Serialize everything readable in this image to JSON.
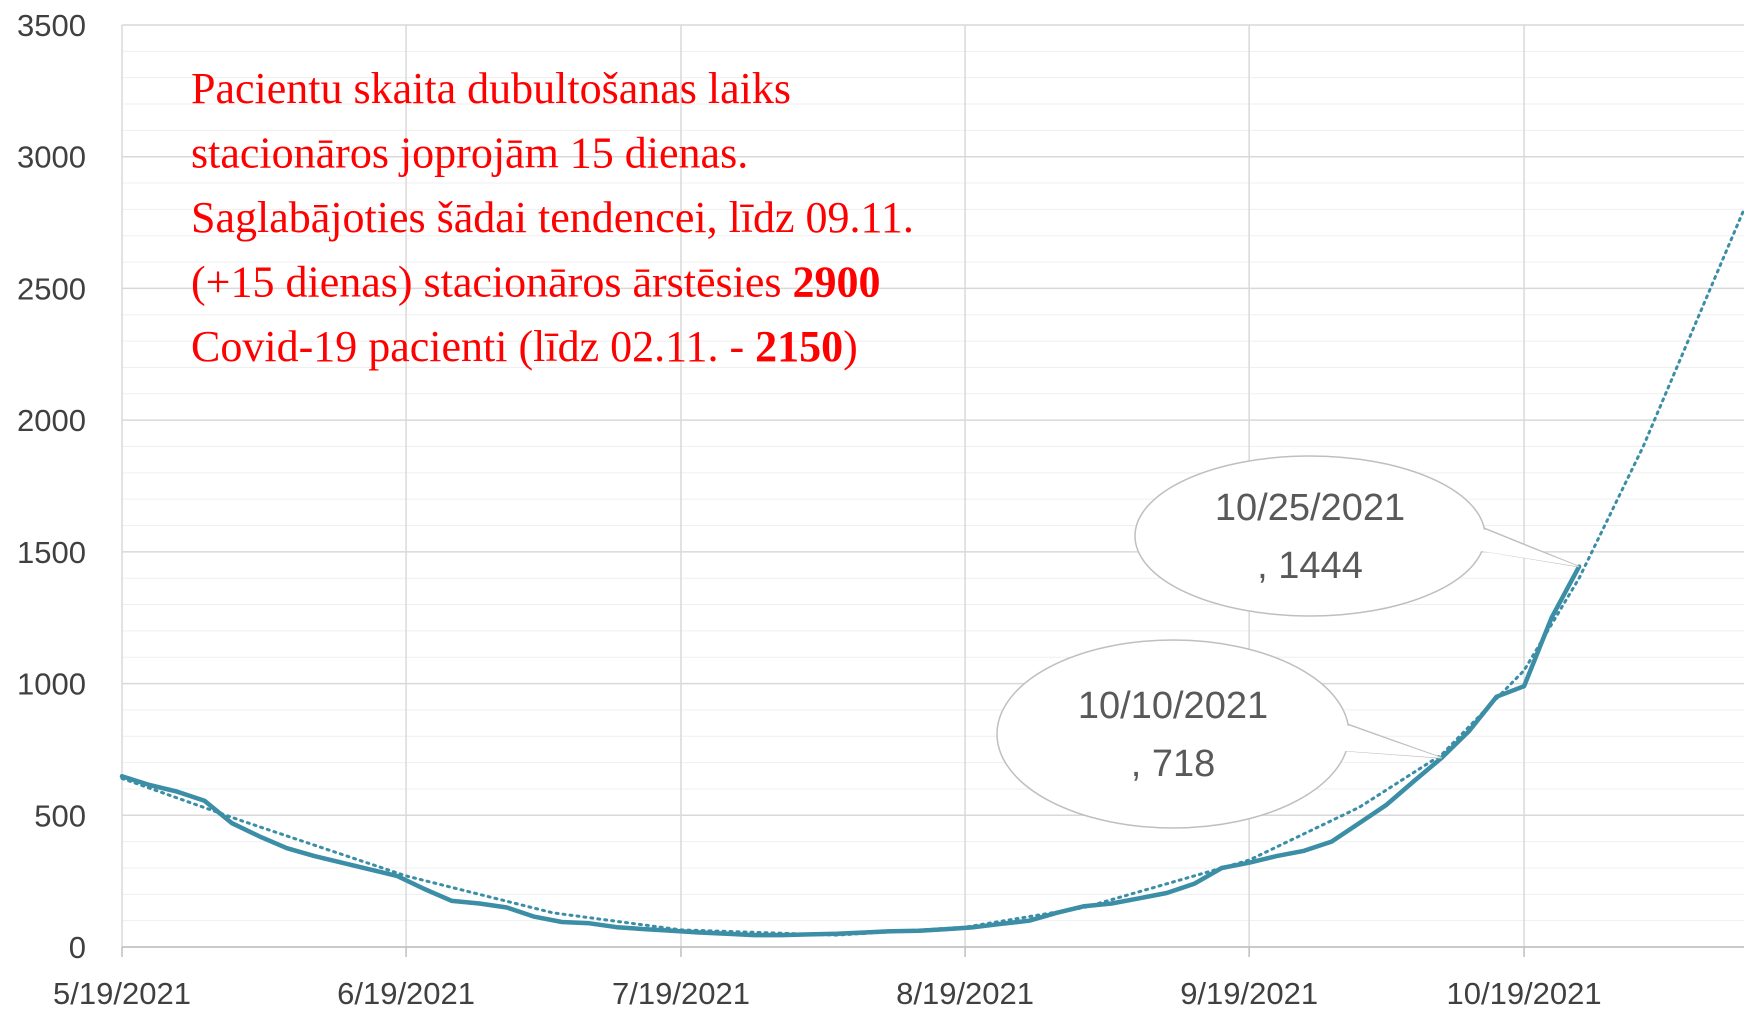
{
  "chart_data": {
    "type": "line",
    "xlim": [
      "2021-05-19",
      "2021-11-12"
    ],
    "xticks": [
      {
        "value": "2021-05-19",
        "label": "5/19/2021"
      },
      {
        "value": "2021-06-19",
        "label": "6/19/2021"
      },
      {
        "value": "2021-07-19",
        "label": "7/19/2021"
      },
      {
        "value": "2021-08-19",
        "label": "8/19/2021"
      },
      {
        "value": "2021-09-19",
        "label": "9/19/2021"
      },
      {
        "value": "2021-10-19",
        "label": "10/19/2021"
      }
    ],
    "ylim": [
      0,
      3500
    ],
    "yticks": [
      0,
      500,
      1000,
      1500,
      2000,
      2500,
      3000,
      3500
    ],
    "yminor": 100,
    "grid": true,
    "series": [
      {
        "color": "#3b8ea5",
        "style": "solid",
        "x": [
          "2021-05-19",
          "2021-05-22",
          "2021-05-25",
          "2021-05-28",
          "2021-05-31",
          "2021-06-03",
          "2021-06-06",
          "2021-06-09",
          "2021-06-12",
          "2021-06-15",
          "2021-06-18",
          "2021-06-21",
          "2021-06-24",
          "2021-06-27",
          "2021-06-30",
          "2021-07-03",
          "2021-07-06",
          "2021-07-09",
          "2021-07-12",
          "2021-07-15",
          "2021-07-18",
          "2021-07-21",
          "2021-07-24",
          "2021-07-27",
          "2021-07-30",
          "2021-08-02",
          "2021-08-05",
          "2021-08-08",
          "2021-08-11",
          "2021-08-14",
          "2021-08-17",
          "2021-08-20",
          "2021-08-23",
          "2021-08-26",
          "2021-08-29",
          "2021-09-01",
          "2021-09-04",
          "2021-09-07",
          "2021-09-10",
          "2021-09-13",
          "2021-09-16",
          "2021-09-19",
          "2021-09-22",
          "2021-09-25",
          "2021-09-28",
          "2021-10-01",
          "2021-10-04",
          "2021-10-07",
          "2021-10-10",
          "2021-10-13",
          "2021-10-16",
          "2021-10-19",
          "2021-10-22",
          "2021-10-25"
        ],
        "values": [
          648,
          615,
          590,
          555,
          470,
          420,
          375,
          345,
          320,
          295,
          270,
          220,
          175,
          165,
          150,
          115,
          95,
          90,
          75,
          68,
          62,
          55,
          50,
          45,
          45,
          48,
          50,
          55,
          60,
          62,
          68,
          75,
          88,
          100,
          130,
          155,
          165,
          185,
          205,
          240,
          300,
          320,
          345,
          365,
          400,
          470,
          540,
          630,
          718,
          820,
          950,
          990,
          1250,
          1444
        ]
      },
      {
        "color": "#3b8ea5",
        "style": "dotted",
        "x": [
          "2021-05-19",
          "2021-06-01",
          "2021-06-19",
          "2021-07-05",
          "2021-07-19",
          "2021-08-05",
          "2021-08-19",
          "2021-09-01",
          "2021-09-19",
          "2021-10-01",
          "2021-10-10",
          "2021-10-19",
          "2021-10-25",
          "2021-11-01",
          "2021-11-12"
        ],
        "values": [
          640,
          480,
          270,
          130,
          65,
          45,
          75,
          150,
          330,
          530,
          730,
          1050,
          1400,
          1900,
          2800
        ]
      }
    ],
    "callouts": [
      {
        "series": 0,
        "point": 53,
        "lines": [
          "10/25/2021",
          ", 1444"
        ]
      },
      {
        "series": 0,
        "point": 48,
        "lines": [
          "10/10/2021",
          ", 718"
        ]
      }
    ],
    "annotation": {
      "color": "#ff0000",
      "lines": [
        [
          {
            "text": "Pacientu skaita dubultošanas laiks"
          }
        ],
        [
          {
            "text": "stacionāros joprojām 15 dienas."
          }
        ],
        [
          {
            "text": "Saglabājoties šādai tendencei, līdz 09.11."
          }
        ],
        [
          {
            "text": "(+15 dienas) stacionāros ārstēsies "
          },
          {
            "text": "2900",
            "bold": true
          }
        ],
        [
          {
            "text": "Covid-19 pacienti (līdz 02.11. - "
          },
          {
            "text": "2150",
            "bold": true
          },
          {
            "text": ")"
          }
        ]
      ]
    }
  }
}
